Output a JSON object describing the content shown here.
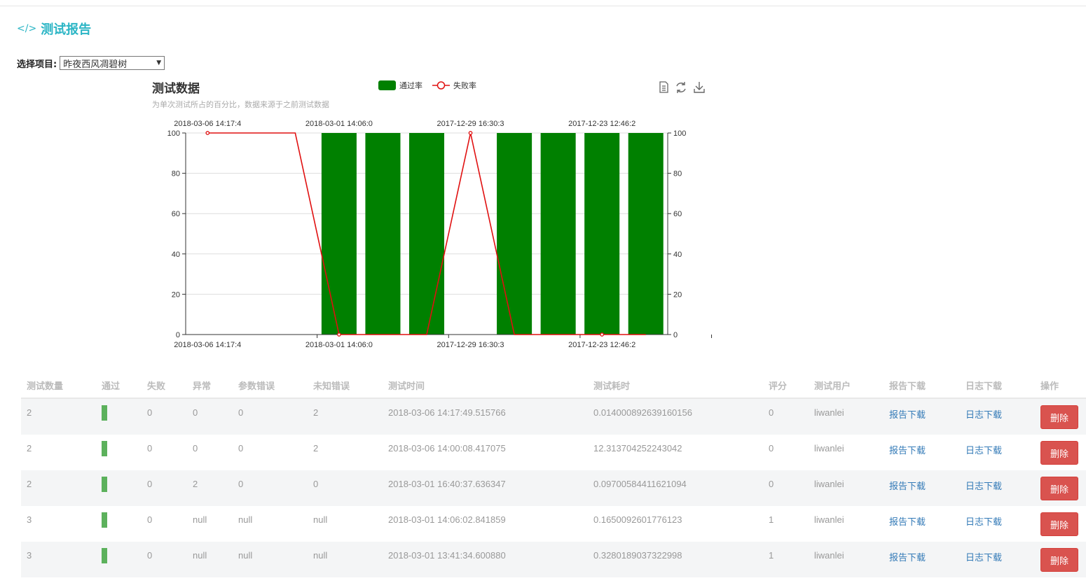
{
  "page": {
    "title": "测试报告",
    "icon": "code-icon"
  },
  "selector": {
    "label": "选择项目:",
    "value": "昨夜西风凋碧树"
  },
  "chart_data": {
    "type": "bar",
    "title": "测试数据",
    "subtitle": "为单次测试所占的百分比，数据来源于之前测试数据",
    "legend": [
      "通过率",
      "失败率"
    ],
    "legend_position": "top",
    "toolbox": [
      "data-view-icon",
      "restore-icon",
      "save-image-icon"
    ],
    "x_tick_labels": [
      "2018-03-06 14:17:4",
      "2018-03-01 14:06:0",
      "2017-12-29 16:30:3",
      "2017-12-23 12:46:2"
    ],
    "y_ticks": [
      0,
      20,
      40,
      60,
      80,
      100
    ],
    "ylim": [
      0,
      100
    ],
    "grid": true,
    "series": [
      {
        "name": "通过率",
        "type": "bar",
        "color": "#008000",
        "values": [
          0,
          0,
          0,
          100,
          100,
          100,
          0,
          100,
          100,
          100,
          100
        ]
      },
      {
        "name": "失败率",
        "type": "line",
        "color": "#e01010",
        "values": [
          100,
          100,
          100,
          0,
          0,
          0,
          100,
          0,
          0,
          0,
          0
        ]
      }
    ]
  },
  "table": {
    "headers": [
      "测试数量",
      "通过",
      "失败",
      "异常",
      "参数错误",
      "未知错误",
      "测试时间",
      "测试耗时",
      "评分",
      "测试用户",
      "报告下载",
      "日志下载",
      "操作"
    ],
    "rows": [
      {
        "count": "2",
        "fail": "0",
        "error": "0",
        "param_error": "0",
        "unknown_error": "2",
        "time": "2018-03-06 14:17:49.515766",
        "duration": "0.014000892639160156",
        "score": "0",
        "user": "liwanlei",
        "report": "报告下载",
        "log": "日志下载",
        "action": "删除"
      },
      {
        "count": "2",
        "fail": "0",
        "error": "0",
        "param_error": "0",
        "unknown_error": "2",
        "time": "2018-03-06 14:00:08.417075",
        "duration": "12.313704252243042",
        "score": "0",
        "user": "liwanlei",
        "report": "报告下载",
        "log": "日志下载",
        "action": "删除"
      },
      {
        "count": "2",
        "fail": "0",
        "error": "2",
        "param_error": "0",
        "unknown_error": "0",
        "time": "2018-03-01 16:40:37.636347",
        "duration": "0.09700584411621094",
        "score": "0",
        "user": "liwanlei",
        "report": "报告下载",
        "log": "日志下载",
        "action": "删除"
      },
      {
        "count": "3",
        "fail": "0",
        "error": "null",
        "param_error": "null",
        "unknown_error": "null",
        "time": "2018-03-01 14:06:02.841859",
        "duration": "0.1650092601776123",
        "score": "1",
        "user": "liwanlei",
        "report": "报告下载",
        "log": "日志下载",
        "action": "删除"
      },
      {
        "count": "3",
        "fail": "0",
        "error": "null",
        "param_error": "null",
        "unknown_error": "null",
        "time": "2018-03-01 13:41:34.600880",
        "duration": "0.3280189037322998",
        "score": "1",
        "user": "liwanlei",
        "report": "报告下载",
        "log": "日志下载",
        "action": "删除"
      }
    ]
  }
}
